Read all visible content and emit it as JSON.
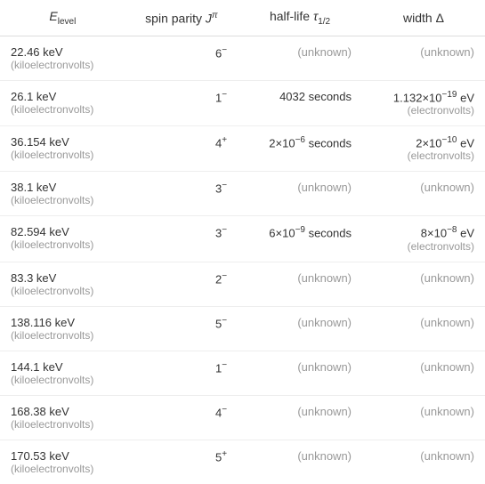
{
  "table": {
    "headers": {
      "energy": "E",
      "energy_sub": "level",
      "spin": "spin parity ",
      "spin_var": "J",
      "spin_sup": "π",
      "halflife": "half-life ",
      "halflife_var": "τ",
      "halflife_sub": "1/2",
      "width": "width Δ"
    },
    "rows": [
      {
        "energy": "22.46 keV",
        "energy_unit": "(kiloelectronvolts)",
        "spin_base": "6",
        "spin_sup": "−",
        "halflife": "(unknown)",
        "halflife_known": false,
        "width": "(unknown)",
        "width_known": false,
        "width_unit": ""
      },
      {
        "energy": "26.1 keV",
        "energy_unit": "(kiloelectronvolts)",
        "spin_base": "1",
        "spin_sup": "−",
        "halflife": "4032 seconds",
        "halflife_known": true,
        "width_pre": "1.132×10",
        "width_sup": "−19",
        "width_post": " eV",
        "width_known": true,
        "width_unit": "(electronvolts)"
      },
      {
        "energy": "36.154 keV",
        "energy_unit": "(kiloelectronvolts)",
        "spin_base": "4",
        "spin_sup": "+",
        "halflife_pre": "2×10",
        "halflife_sup": "−6",
        "halflife_post": " seconds",
        "halflife_known": true,
        "width_pre": "2×10",
        "width_sup": "−10",
        "width_post": " eV",
        "width_known": true,
        "width_unit": "(electronvolts)"
      },
      {
        "energy": "38.1 keV",
        "energy_unit": "(kiloelectronvolts)",
        "spin_base": "3",
        "spin_sup": "−",
        "halflife": "(unknown)",
        "halflife_known": false,
        "width": "(unknown)",
        "width_known": false,
        "width_unit": ""
      },
      {
        "energy": "82.594 keV",
        "energy_unit": "(kiloelectronvolts)",
        "spin_base": "3",
        "spin_sup": "−",
        "halflife_pre": "6×10",
        "halflife_sup": "−9",
        "halflife_post": " seconds",
        "halflife_known": true,
        "width_pre": "8×10",
        "width_sup": "−8",
        "width_post": " eV",
        "width_known": true,
        "width_unit": "(electronvolts)"
      },
      {
        "energy": "83.3 keV",
        "energy_unit": "(kiloelectronvolts)",
        "spin_base": "2",
        "spin_sup": "−",
        "halflife": "(unknown)",
        "halflife_known": false,
        "width": "(unknown)",
        "width_known": false,
        "width_unit": ""
      },
      {
        "energy": "138.116 keV",
        "energy_unit": "(kiloelectronvolts)",
        "spin_base": "5",
        "spin_sup": "−",
        "halflife": "(unknown)",
        "halflife_known": false,
        "width": "(unknown)",
        "width_known": false,
        "width_unit": ""
      },
      {
        "energy": "144.1 keV",
        "energy_unit": "(kiloelectronvolts)",
        "spin_base": "1",
        "spin_sup": "−",
        "halflife": "(unknown)",
        "halflife_known": false,
        "width": "(unknown)",
        "width_known": false,
        "width_unit": ""
      },
      {
        "energy": "168.38 keV",
        "energy_unit": "(kiloelectronvolts)",
        "spin_base": "4",
        "spin_sup": "−",
        "halflife": "(unknown)",
        "halflife_known": false,
        "width": "(unknown)",
        "width_known": false,
        "width_unit": ""
      },
      {
        "energy": "170.53 keV",
        "energy_unit": "(kiloelectronvolts)",
        "spin_base": "5",
        "spin_sup": "+",
        "halflife": "(unknown)",
        "halflife_known": false,
        "width": "(unknown)",
        "width_known": false,
        "width_unit": ""
      }
    ]
  },
  "colors": {
    "text": "#333333",
    "muted": "#999999",
    "border_header": "#dddddd",
    "border_row": "#eeeeee",
    "background": "#ffffff"
  }
}
